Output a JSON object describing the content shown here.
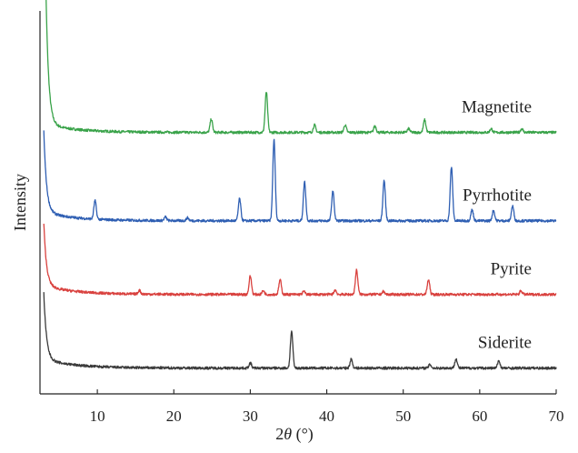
{
  "chart_data": {
    "type": "line",
    "title": "",
    "xlabel_prefix": "2",
    "xlabel_symbol": "θ",
    "xlabel_unit": " (°)",
    "ylabel": "Intensity",
    "xlim": [
      2.5,
      70
    ],
    "xticks": [
      10,
      20,
      30,
      40,
      50,
      60,
      70
    ],
    "yticks_shown": false,
    "grid": false,
    "legend": "none",
    "series": [
      {
        "name": "Magnetite",
        "color": "#3aa34a",
        "baseline": 3.55,
        "initial_rise": 4.0,
        "peaks": [
          {
            "x": 24.9,
            "h": 0.18
          },
          {
            "x": 32.1,
            "h": 0.55
          },
          {
            "x": 38.4,
            "h": 0.1
          },
          {
            "x": 42.4,
            "h": 0.1
          },
          {
            "x": 46.3,
            "h": 0.09
          },
          {
            "x": 50.7,
            "h": 0.05
          },
          {
            "x": 52.8,
            "h": 0.17
          },
          {
            "x": 61.5,
            "h": 0.05
          },
          {
            "x": 65.5,
            "h": 0.05
          }
        ]
      },
      {
        "name": "Pyrrhotite",
        "color": "#2f5fb3",
        "baseline": 2.35,
        "initial_rise": 1.1,
        "peaks": [
          {
            "x": 9.7,
            "h": 0.25
          },
          {
            "x": 18.9,
            "h": 0.05
          },
          {
            "x": 21.8,
            "h": 0.04
          },
          {
            "x": 28.6,
            "h": 0.3
          },
          {
            "x": 33.1,
            "h": 1.1
          },
          {
            "x": 37.1,
            "h": 0.53
          },
          {
            "x": 40.8,
            "h": 0.4
          },
          {
            "x": 47.5,
            "h": 0.55
          },
          {
            "x": 56.3,
            "h": 0.73
          },
          {
            "x": 59.0,
            "h": 0.15
          },
          {
            "x": 61.8,
            "h": 0.14
          },
          {
            "x": 64.3,
            "h": 0.2
          }
        ]
      },
      {
        "name": "Pyrite",
        "color": "#d9423f",
        "baseline": 1.35,
        "initial_rise": 0.85,
        "peaks": [
          {
            "x": 15.5,
            "h": 0.05
          },
          {
            "x": 30.0,
            "h": 0.25
          },
          {
            "x": 31.7,
            "h": 0.05
          },
          {
            "x": 33.9,
            "h": 0.2
          },
          {
            "x": 37.0,
            "h": 0.04
          },
          {
            "x": 41.1,
            "h": 0.06
          },
          {
            "x": 43.9,
            "h": 0.33
          },
          {
            "x": 47.4,
            "h": 0.04
          },
          {
            "x": 53.3,
            "h": 0.2
          },
          {
            "x": 65.4,
            "h": 0.05
          }
        ]
      },
      {
        "name": "Siderite",
        "color": "#3b3b3b",
        "baseline": 0.35,
        "initial_rise": 0.9,
        "peaks": [
          {
            "x": 30.0,
            "h": 0.07
          },
          {
            "x": 35.4,
            "h": 0.5
          },
          {
            "x": 43.2,
            "h": 0.12
          },
          {
            "x": 53.5,
            "h": 0.05
          },
          {
            "x": 56.9,
            "h": 0.13
          },
          {
            "x": 62.5,
            "h": 0.1
          }
        ]
      }
    ]
  }
}
